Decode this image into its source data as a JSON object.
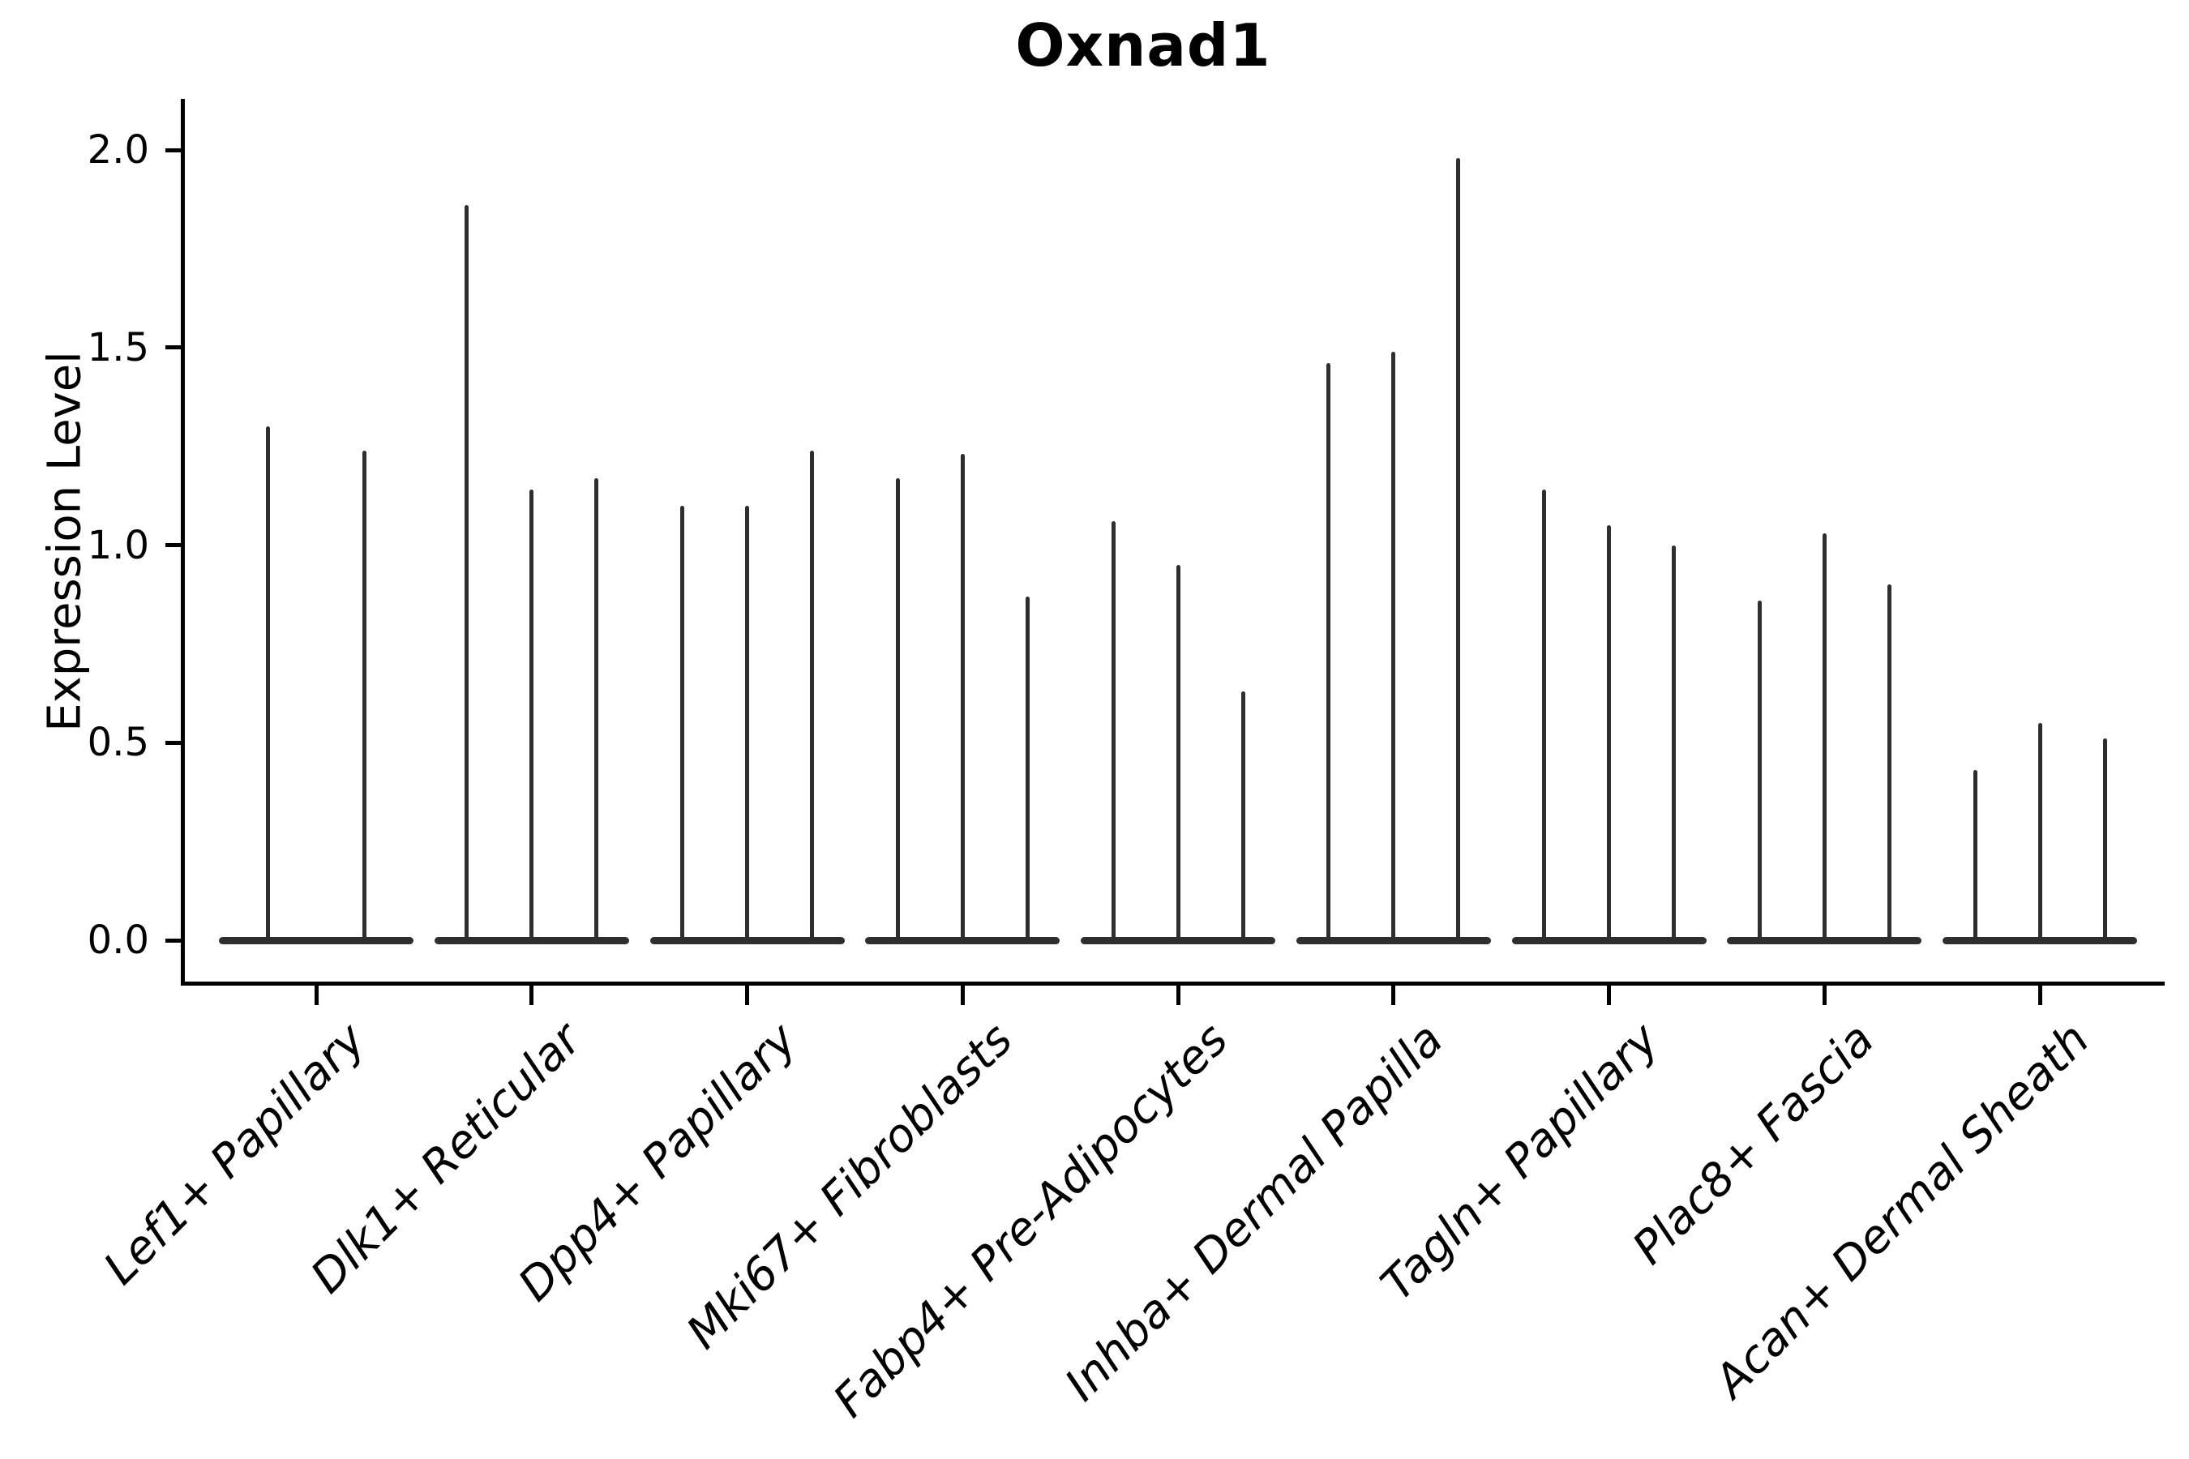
{
  "title": "Oxnad1",
  "y_axis": {
    "label": "Expression Level",
    "tick_labels": [
      "0.0",
      "0.5",
      "1.0",
      "1.5",
      "2.0"
    ]
  },
  "x_axis": {
    "tick_labels": [
      "Lef1+ Papillary",
      "Dlk1+ Reticular",
      "Dpp4+ Papillary",
      "Mki67+ Fibroblasts",
      "Fabp4+ Pre-Adipocytes",
      "Inhba+ Dermal Papilla",
      "Tagln+ Papillary",
      "Plac8+ Fascia",
      "Acan+ Dermal Sheath"
    ]
  },
  "chart_data": {
    "type": "violin",
    "title": "Oxnad1",
    "xlabel": "",
    "ylabel": "Expression Level",
    "ylim": [
      -0.1,
      2.13
    ],
    "yticks": [
      0.0,
      0.5,
      1.0,
      1.5,
      2.0
    ],
    "grid": false,
    "legend": "none",
    "style_note": "Seurat-style violin plot; expression is near zero for most cells so each violin renders as a wide flat base at 0 with a single thin vertical spike up to the max expression value",
    "violin_color": "#2e2e2e",
    "categories": [
      "Lef1+ Papillary",
      "Dlk1+ Reticular",
      "Dpp4+ Papillary",
      "Mki67+ Fibroblasts",
      "Fabp4+ Pre-Adipocytes",
      "Inhba+ Dermal Papilla",
      "Tagln+ Papillary",
      "Plac8+ Fascia",
      "Acan+ Dermal Sheath"
    ],
    "groups": [
      {
        "category": "Lef1+ Papillary",
        "violin_peaks": [
          1.3,
          1.24
        ]
      },
      {
        "category": "Dlk1+ Reticular",
        "violin_peaks": [
          1.86,
          1.14,
          1.17
        ]
      },
      {
        "category": "Dpp4+ Papillary",
        "violin_peaks": [
          1.1,
          1.1,
          1.24
        ]
      },
      {
        "category": "Mki67+ Fibroblasts",
        "violin_peaks": [
          1.17,
          1.23,
          0.87
        ]
      },
      {
        "category": "Fabp4+ Pre-Adipocytes",
        "violin_peaks": [
          1.06,
          0.95,
          0.63
        ]
      },
      {
        "category": "Inhba+ Dermal Papilla",
        "violin_peaks": [
          1.46,
          1.49,
          1.98
        ]
      },
      {
        "category": "Tagln+ Papillary",
        "violin_peaks": [
          1.14,
          1.05,
          1.0
        ]
      },
      {
        "category": "Plac8+ Fascia",
        "violin_peaks": [
          0.86,
          1.03,
          0.9
        ]
      },
      {
        "category": "Acan+ Dermal Sheath",
        "violin_peaks": [
          0.43,
          0.55,
          0.51
        ]
      }
    ]
  }
}
